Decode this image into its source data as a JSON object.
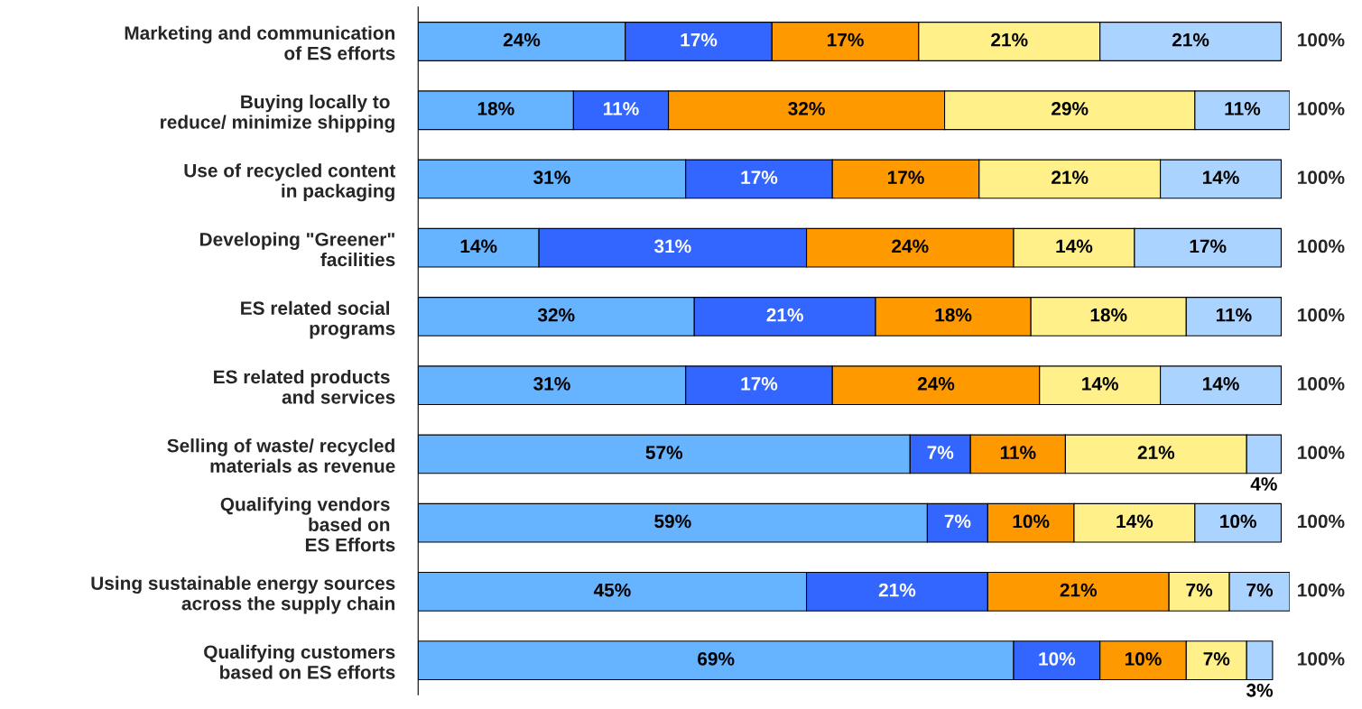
{
  "chart_data": {
    "type": "bar",
    "orientation": "horizontal",
    "stacked": true,
    "categories": [
      "Marketing and communication\nof ES efforts",
      "Buying locally to \nreduce/ minimize shipping",
      "Use of recycled content\nin packaging",
      "Developing \"Greener\"\nfacilities",
      "ES related social \nprograms",
      "ES related products \nand services",
      "Selling of waste/ recycled\nmaterials as revenue",
      "Qualifying vendors \nbased on \nES Efforts",
      "Using sustainable energy sources\nacross the supply chain",
      "Qualifying customers\nbased on ES efforts"
    ],
    "series": [
      {
        "color": "#66b3ff",
        "values": [
          24,
          18,
          31,
          14,
          32,
          31,
          57,
          59,
          45,
          69
        ],
        "value_labels": [
          "24%",
          "18%",
          "31%",
          "14%",
          "32%",
          "31%",
          "57%",
          "59%",
          "45%",
          "69%"
        ]
      },
      {
        "color": "#3366ff",
        "values": [
          17,
          11,
          17,
          31,
          21,
          17,
          7,
          7,
          21,
          10
        ],
        "value_labels": [
          "17%",
          "11%",
          "17%",
          "31%",
          "21%",
          "17%",
          "7%",
          "7%",
          "21%",
          "10%"
        ]
      },
      {
        "color": "#ff9900",
        "values": [
          17,
          32,
          17,
          24,
          18,
          24,
          11,
          10,
          21,
          10
        ],
        "value_labels": [
          "17%",
          "32%",
          "17%",
          "24%",
          "18%",
          "24%",
          "11%",
          "10%",
          "21%",
          "10%"
        ]
      },
      {
        "color": "#fff08a",
        "values": [
          21,
          29,
          21,
          14,
          18,
          14,
          21,
          14,
          7,
          7
        ],
        "value_labels": [
          "21%",
          "29%",
          "21%",
          "14%",
          "18%",
          "14%",
          "21%",
          "14%",
          "7%",
          "7%"
        ]
      },
      {
        "color": "#aad4ff",
        "values": [
          21,
          11,
          14,
          17,
          11,
          14,
          4,
          10,
          7,
          3
        ],
        "value_labels": [
          "21%",
          "11%",
          "14%",
          "17%",
          "11%",
          "14%",
          "4%",
          "10%",
          "7%",
          "3%"
        ]
      }
    ],
    "totals": [
      "100%",
      "100%",
      "100%",
      "100%",
      "100%",
      "100%",
      "100%",
      "100%",
      "100%",
      "100%"
    ],
    "grid": false,
    "legend": false
  }
}
